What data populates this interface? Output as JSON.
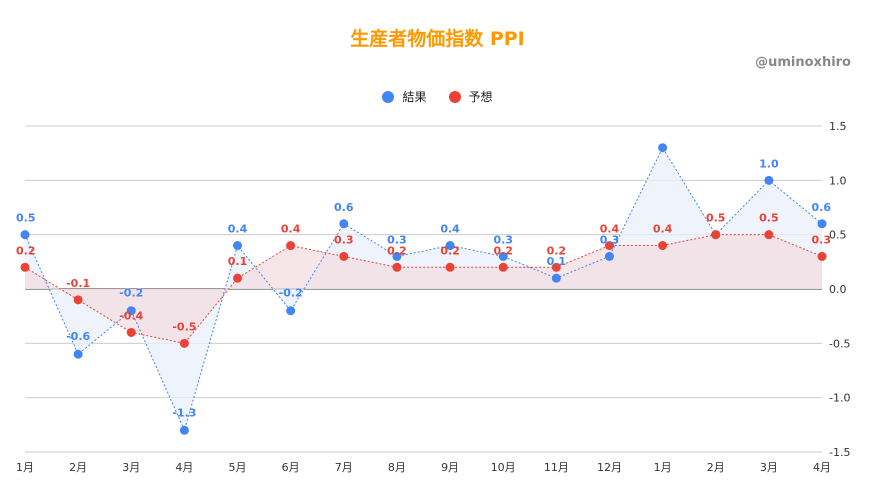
{
  "chart_data": {
    "type": "area",
    "title": "生産者物価指数  PPI",
    "watermark": "@uminoxhiro",
    "categories": [
      "1月",
      "2月",
      "3月",
      "4月",
      "5月",
      "6月",
      "7月",
      "8月",
      "9月",
      "10月",
      "11月",
      "12月",
      "1月",
      "2月",
      "3月",
      "4月"
    ],
    "series": [
      {
        "name": "結果",
        "color": "#4285f4",
        "fill": "#e8effb",
        "values": [
          0.5,
          -0.6,
          -0.2,
          -1.3,
          0.4,
          -0.2,
          0.6,
          0.3,
          0.4,
          0.3,
          0.1,
          0.3,
          1.3,
          0.5,
          1.0,
          0.6
        ],
        "labels": [
          "0.5",
          "-0.6",
          "-0.2",
          "-1.3",
          "0.4",
          "-0.2",
          "0.6",
          "0.3",
          "0.4",
          "0.3",
          "0.1",
          "0.3",
          "",
          "",
          "1.0",
          "0.6"
        ]
      },
      {
        "name": "予想",
        "color": "#ea4335",
        "fill": "#f3dde2",
        "values": [
          0.2,
          -0.1,
          -0.4,
          -0.5,
          0.1,
          0.4,
          0.3,
          0.2,
          0.2,
          0.2,
          0.2,
          0.4,
          0.4,
          0.5,
          0.5,
          0.3
        ],
        "labels": [
          "0.2",
          "-0.1",
          "-0.4",
          "-0.5",
          "0.1",
          "0.4",
          "0.3",
          "0.2",
          "0.2",
          "0.2",
          "0.2",
          "0.4",
          "0.4",
          "0.5",
          "0.5",
          "0.3"
        ]
      }
    ],
    "ylim": [
      -1.5,
      1.5
    ],
    "yticks": [
      "1.5",
      "1.0",
      "0.5",
      "0.0",
      "-0.5",
      "-1.0",
      "-1.5"
    ],
    "legend_position": "top",
    "grid": true
  }
}
